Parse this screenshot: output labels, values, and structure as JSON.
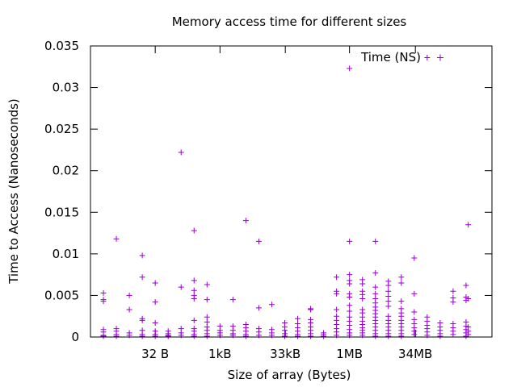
{
  "chart_data": {
    "type": "scatter",
    "title": "Memory access time for different sizes",
    "xlabel": "Size of array (Bytes)",
    "ylabel": "Time to Access (Nanoseconds)",
    "x_scale": "log2",
    "xlim": [
      1,
      2147483648
    ],
    "ylim": [
      0,
      0.035
    ],
    "y_ticks": [
      0,
      0.005,
      0.01,
      0.015,
      0.02,
      0.025,
      0.03,
      0.035
    ],
    "y_tick_labels": [
      "0",
      "0.005",
      "0.01",
      "0.015",
      "0.02",
      "0.025",
      "0.03",
      "0.035"
    ],
    "x_ticks": [
      {
        "value": 32,
        "label": "32 B"
      },
      {
        "value": 1024,
        "label": "1kB"
      },
      {
        "value": 33792,
        "label": "33kB"
      },
      {
        "value": 1048576,
        "label": "1MB"
      },
      {
        "value": 35651584,
        "label": "34MB"
      }
    ],
    "legend": {
      "position": "top-right"
    },
    "marker_color": "#9400d3",
    "grid": false,
    "series": [
      {
        "name": "Time (NS)",
        "points": [
          [
            2,
            0.0053
          ],
          [
            2,
            0.0045
          ],
          [
            2,
            0.0043
          ],
          [
            2,
            0.0009
          ],
          [
            2,
            0.0006
          ],
          [
            2,
            0.0002
          ],
          [
            2,
            0.0001
          ],
          [
            4,
            0.0118
          ],
          [
            4,
            0.001
          ],
          [
            4,
            0.0007
          ],
          [
            4,
            0.0003
          ],
          [
            4,
            0.0001
          ],
          [
            8,
            0.005
          ],
          [
            8,
            0.0033
          ],
          [
            8,
            0.0005
          ],
          [
            8,
            0.0002
          ],
          [
            16,
            0.0098
          ],
          [
            16,
            0.0072
          ],
          [
            16,
            0.0022
          ],
          [
            16,
            0.002
          ],
          [
            16,
            0.0008
          ],
          [
            16,
            0.0003
          ],
          [
            16,
            0.0001
          ],
          [
            32,
            0.0065
          ],
          [
            32,
            0.0042
          ],
          [
            32,
            0.0017
          ],
          [
            32,
            0.0007
          ],
          [
            32,
            0.0003
          ],
          [
            32,
            0.0001
          ],
          [
            64,
            0.0007
          ],
          [
            64,
            0.0004
          ],
          [
            64,
            0.0002
          ],
          [
            64,
            0.0001
          ],
          [
            128,
            0.0222
          ],
          [
            128,
            0.006
          ],
          [
            128,
            0.001
          ],
          [
            128,
            0.0005
          ],
          [
            128,
            0.0002
          ],
          [
            256,
            0.0128
          ],
          [
            256,
            0.0068
          ],
          [
            256,
            0.0056
          ],
          [
            256,
            0.005
          ],
          [
            256,
            0.0046
          ],
          [
            256,
            0.002
          ],
          [
            256,
            0.001
          ],
          [
            256,
            0.0007
          ],
          [
            256,
            0.0003
          ],
          [
            256,
            0.0001
          ],
          [
            512,
            0.0063
          ],
          [
            512,
            0.0045
          ],
          [
            512,
            0.0024
          ],
          [
            512,
            0.0018
          ],
          [
            512,
            0.0012
          ],
          [
            512,
            0.0008
          ],
          [
            512,
            0.0004
          ],
          [
            512,
            0.0001
          ],
          [
            1024,
            0.0013
          ],
          [
            1024,
            0.0008
          ],
          [
            1024,
            0.0005
          ],
          [
            1024,
            0.0002
          ],
          [
            2048,
            0.0045
          ],
          [
            2048,
            0.0013
          ],
          [
            2048,
            0.0008
          ],
          [
            2048,
            0.0004
          ],
          [
            2048,
            0.0002
          ],
          [
            4096,
            0.014
          ],
          [
            4096,
            0.0015
          ],
          [
            4096,
            0.0011
          ],
          [
            4096,
            0.0007
          ],
          [
            4096,
            0.0003
          ],
          [
            4096,
            0.0001
          ],
          [
            8192,
            0.0115
          ],
          [
            8192,
            0.0035
          ],
          [
            8192,
            0.001
          ],
          [
            8192,
            0.0006
          ],
          [
            8192,
            0.0002
          ],
          [
            16384,
            0.0039
          ],
          [
            16384,
            0.0009
          ],
          [
            16384,
            0.0005
          ],
          [
            16384,
            0.0002
          ],
          [
            32768,
            0.0017
          ],
          [
            32768,
            0.0012
          ],
          [
            32768,
            0.0008
          ],
          [
            32768,
            0.0004
          ],
          [
            32768,
            0.0001
          ],
          [
            65536,
            0.0022
          ],
          [
            65536,
            0.0016
          ],
          [
            65536,
            0.0011
          ],
          [
            65536,
            0.0007
          ],
          [
            65536,
            0.0003
          ],
          [
            65536,
            0.0001
          ],
          [
            131072,
            0.0034
          ],
          [
            131072,
            0.0033
          ],
          [
            131072,
            0.0021
          ],
          [
            131072,
            0.0017
          ],
          [
            131072,
            0.0012
          ],
          [
            131072,
            0.0008
          ],
          [
            131072,
            0.0004
          ],
          [
            131072,
            0.0001
          ],
          [
            262144,
            0.0005
          ],
          [
            262144,
            0.0003
          ],
          [
            262144,
            0.0001
          ],
          [
            524288,
            0.0072
          ],
          [
            524288,
            0.0055
          ],
          [
            524288,
            0.0052
          ],
          [
            524288,
            0.0033
          ],
          [
            524288,
            0.0025
          ],
          [
            524288,
            0.002
          ],
          [
            524288,
            0.0015
          ],
          [
            524288,
            0.001
          ],
          [
            524288,
            0.0006
          ],
          [
            524288,
            0.0002
          ],
          [
            1048576,
            0.0323
          ],
          [
            1048576,
            0.0115
          ],
          [
            1048576,
            0.0075
          ],
          [
            1048576,
            0.0068
          ],
          [
            1048576,
            0.0064
          ],
          [
            1048576,
            0.0052
          ],
          [
            1048576,
            0.0048
          ],
          [
            1048576,
            0.0038
          ],
          [
            1048576,
            0.0031
          ],
          [
            1048576,
            0.0024
          ],
          [
            1048576,
            0.0019
          ],
          [
            1048576,
            0.0014
          ],
          [
            1048576,
            0.0009
          ],
          [
            1048576,
            0.0005
          ],
          [
            1048576,
            0.0002
          ],
          [
            2097152,
            0.0069
          ],
          [
            2097152,
            0.0064
          ],
          [
            2097152,
            0.0055
          ],
          [
            2097152,
            0.0051
          ],
          [
            2097152,
            0.0046
          ],
          [
            2097152,
            0.0033
          ],
          [
            2097152,
            0.0029
          ],
          [
            2097152,
            0.0024
          ],
          [
            2097152,
            0.0019
          ],
          [
            2097152,
            0.0015
          ],
          [
            2097152,
            0.0011
          ],
          [
            2097152,
            0.0008
          ],
          [
            2097152,
            0.0005
          ],
          [
            2097152,
            0.0002
          ],
          [
            4194304,
            0.0115
          ],
          [
            4194304,
            0.0077
          ],
          [
            4194304,
            0.006
          ],
          [
            4194304,
            0.0052
          ],
          [
            4194304,
            0.0046
          ],
          [
            4194304,
            0.0041
          ],
          [
            4194304,
            0.0036
          ],
          [
            4194304,
            0.0032
          ],
          [
            4194304,
            0.0028
          ],
          [
            4194304,
            0.0024
          ],
          [
            4194304,
            0.002
          ],
          [
            4194304,
            0.0016
          ],
          [
            4194304,
            0.0012
          ],
          [
            4194304,
            0.0008
          ],
          [
            4194304,
            0.0004
          ],
          [
            4194304,
            0.0001
          ],
          [
            8388608,
            0.0067
          ],
          [
            8388608,
            0.0062
          ],
          [
            8388608,
            0.0055
          ],
          [
            8388608,
            0.0049
          ],
          [
            8388608,
            0.0043
          ],
          [
            8388608,
            0.0037
          ],
          [
            8388608,
            0.0025
          ],
          [
            8388608,
            0.002
          ],
          [
            8388608,
            0.0016
          ],
          [
            8388608,
            0.0012
          ],
          [
            8388608,
            0.0008
          ],
          [
            8388608,
            0.0004
          ],
          [
            8388608,
            0.0001
          ],
          [
            16777216,
            0.0072
          ],
          [
            16777216,
            0.0065
          ],
          [
            16777216,
            0.0043
          ],
          [
            16777216,
            0.0034
          ],
          [
            16777216,
            0.0029
          ],
          [
            16777216,
            0.0025
          ],
          [
            16777216,
            0.002
          ],
          [
            16777216,
            0.0016
          ],
          [
            16777216,
            0.0012
          ],
          [
            16777216,
            0.0008
          ],
          [
            16777216,
            0.0004
          ],
          [
            16777216,
            0.0001
          ],
          [
            33554432,
            0.0095
          ],
          [
            33554432,
            0.0052
          ],
          [
            33554432,
            0.003
          ],
          [
            33554432,
            0.0021
          ],
          [
            33554432,
            0.0016
          ],
          [
            33554432,
            0.0011
          ],
          [
            33554432,
            0.0007
          ],
          [
            33554432,
            0.0003
          ],
          [
            67108864,
            0.0336
          ],
          [
            67108864,
            0.0024
          ],
          [
            67108864,
            0.0019
          ],
          [
            67108864,
            0.0014
          ],
          [
            67108864,
            0.001
          ],
          [
            67108864,
            0.0006
          ],
          [
            67108864,
            0.0002
          ],
          [
            134217728,
            0.0017
          ],
          [
            134217728,
            0.0012
          ],
          [
            134217728,
            0.0008
          ],
          [
            134217728,
            0.0004
          ],
          [
            134217728,
            0.0001
          ],
          [
            268435456,
            0.0055
          ],
          [
            268435456,
            0.0047
          ],
          [
            268435456,
            0.0042
          ],
          [
            268435456,
            0.0016
          ],
          [
            268435456,
            0.0011
          ],
          [
            268435456,
            0.0007
          ],
          [
            268435456,
            0.0003
          ],
          [
            536870912,
            0.0062
          ],
          [
            536870912,
            0.0048
          ],
          [
            536870912,
            0.0044
          ],
          [
            536870912,
            0.0018
          ],
          [
            536870912,
            0.0013
          ],
          [
            536870912,
            0.0009
          ],
          [
            536870912,
            0.0005
          ],
          [
            536870912,
            0.0001
          ],
          [
            603979776,
            0.0135
          ],
          [
            603979776,
            0.0046
          ],
          [
            603979776,
            0.0012
          ],
          [
            603979776,
            0.0007
          ],
          [
            603979776,
            0.0003
          ]
        ]
      }
    ]
  }
}
